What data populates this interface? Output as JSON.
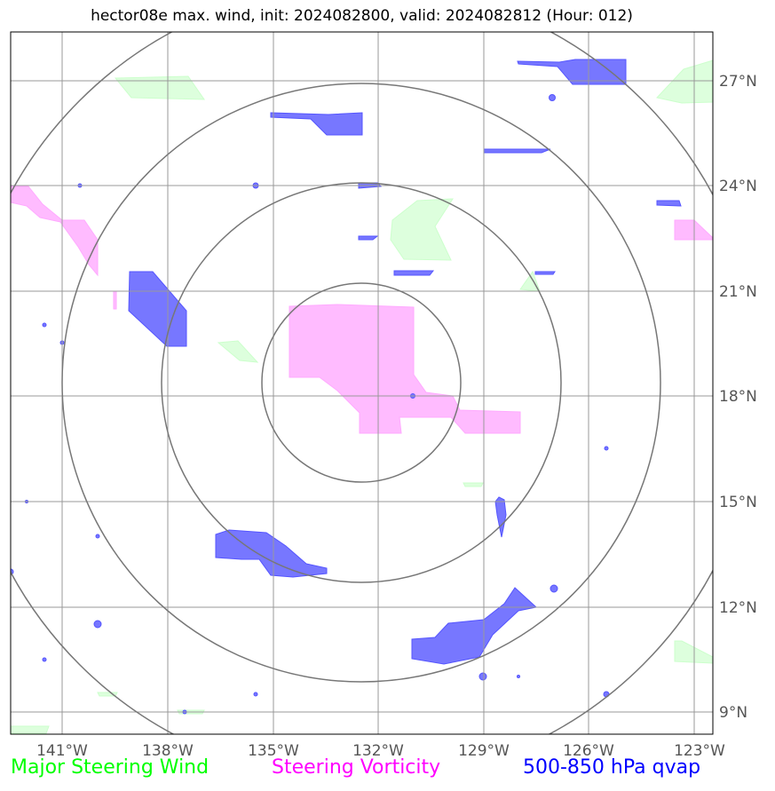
{
  "title": "hector08e max. wind, init: 2024082800, valid: 2024082812 (Hour: 012)",
  "axes": {
    "lon_labels": [
      "141°W",
      "138°W",
      "135°W",
      "132°W",
      "129°W",
      "126°W",
      "123°W"
    ],
    "lat_labels": [
      "27°N",
      "24°N",
      "21°N",
      "18°N",
      "15°N",
      "12°N",
      "9°N"
    ]
  },
  "legend": [
    {
      "label": "Major Steering Wind",
      "color": "#00ff00"
    },
    {
      "label": "Steering Vorticity",
      "color": "#ff00ff"
    },
    {
      "label": "500-850 hPa qvap",
      "color": "#0000ff"
    }
  ],
  "colors": {
    "steering_wind_fill": "#ddffdd",
    "vorticity_fill": "#ffbbff",
    "qvap_fill": "#7777ff",
    "grid": "#999999",
    "range_rings": "#777777"
  },
  "range_ring_count": 4
}
